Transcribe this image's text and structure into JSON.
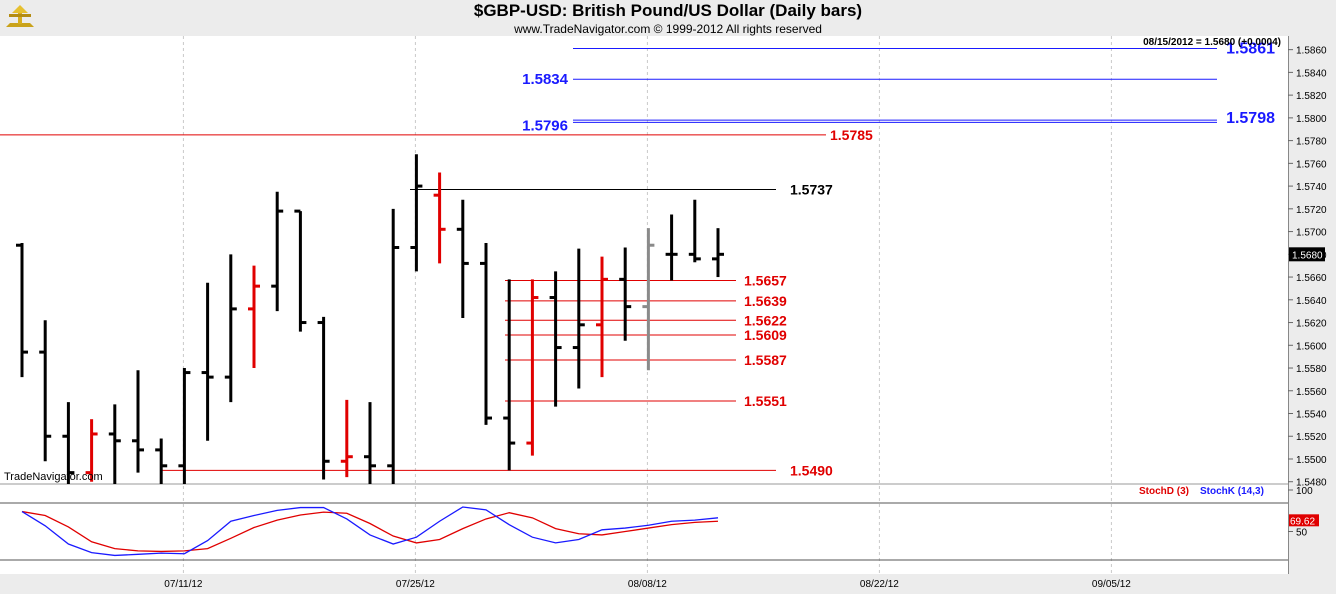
{
  "header": {
    "title": "$GBP-USD:  British Pound/US Dollar  (Daily bars)",
    "copyright": "www.TradeNavigator.com © 1999-2012 All rights reserved",
    "last_quote": "08/15/2012 = 1.5680 (+0.0004)"
  },
  "watermark": "TradeNavigator.com",
  "colors": {
    "up_bar": "#000000",
    "red_bar": "#e00000",
    "gray_bar": "#8a8a8a",
    "blue_level": "#1a1aff",
    "red_level": "#e00000",
    "stoch_d": "#e00000",
    "stoch_k": "#1a1aff"
  },
  "chart_data": [
    {
      "type": "ohlc",
      "title": "$GBP-USD:  British Pound/US Dollar  (Daily bars)",
      "ylim": [
        1.5478,
        1.5872
      ],
      "y_ticks": [
        "1.5480",
        "1.5500",
        "1.5520",
        "1.5540",
        "1.5560",
        "1.5580",
        "1.5600",
        "1.5620",
        "1.5640",
        "1.5660",
        "1.5680",
        "1.5700",
        "1.5720",
        "1.5740",
        "1.5760",
        "1.5780",
        "1.5800",
        "1.5820",
        "1.5840",
        "1.5860"
      ],
      "x_ticks": [
        "07/11/12",
        "07/25/12",
        "08/08/12",
        "08/22/12",
        "09/05/12"
      ],
      "current_price": "1.5680",
      "bars": [
        {
          "date": "07/02/12",
          "o": 1.5688,
          "h": 1.569,
          "l": 1.5572,
          "c": 1.5594,
          "color": "black"
        },
        {
          "date": "07/03/12",
          "o": 1.5594,
          "h": 1.5622,
          "l": 1.5498,
          "c": 1.552,
          "color": "black"
        },
        {
          "date": "07/04/12",
          "o": 1.552,
          "h": 1.555,
          "l": 1.5478,
          "c": 1.5488,
          "color": "black"
        },
        {
          "date": "07/05/12",
          "o": 1.5488,
          "h": 1.5535,
          "l": 1.548,
          "c": 1.5522,
          "color": "red"
        },
        {
          "date": "07/06/12",
          "o": 1.5522,
          "h": 1.5548,
          "l": 1.5478,
          "c": 1.5516,
          "color": "black"
        },
        {
          "date": "07/09/12",
          "o": 1.5516,
          "h": 1.5578,
          "l": 1.5488,
          "c": 1.5508,
          "color": "black"
        },
        {
          "date": "07/10/12",
          "o": 1.5508,
          "h": 1.5518,
          "l": 1.5478,
          "c": 1.5494,
          "color": "black"
        },
        {
          "date": "07/11/12",
          "o": 1.5494,
          "h": 1.558,
          "l": 1.5478,
          "c": 1.5576,
          "color": "black"
        },
        {
          "date": "07/12/12",
          "o": 1.5576,
          "h": 1.5655,
          "l": 1.5516,
          "c": 1.5572,
          "color": "black"
        },
        {
          "date": "07/13/12",
          "o": 1.5572,
          "h": 1.568,
          "l": 1.555,
          "c": 1.5632,
          "color": "black"
        },
        {
          "date": "07/16/12",
          "o": 1.5632,
          "h": 1.567,
          "l": 1.558,
          "c": 1.5652,
          "color": "red"
        },
        {
          "date": "07/17/12",
          "o": 1.5652,
          "h": 1.5735,
          "l": 1.563,
          "c": 1.5718,
          "color": "black"
        },
        {
          "date": "07/18/12",
          "o": 1.5718,
          "h": 1.5718,
          "l": 1.5612,
          "c": 1.562,
          "color": "black"
        },
        {
          "date": "07/19/12",
          "o": 1.562,
          "h": 1.5625,
          "l": 1.5482,
          "c": 1.5498,
          "color": "black"
        },
        {
          "date": "07/20/12",
          "o": 1.5498,
          "h": 1.5552,
          "l": 1.5484,
          "c": 1.5502,
          "color": "red"
        },
        {
          "date": "07/23/12",
          "o": 1.5502,
          "h": 1.555,
          "l": 1.5478,
          "c": 1.5494,
          "color": "black"
        },
        {
          "date": "07/24/12",
          "o": 1.5494,
          "h": 1.572,
          "l": 1.5478,
          "c": 1.5686,
          "color": "black"
        },
        {
          "date": "07/25/12",
          "o": 1.5686,
          "h": 1.5768,
          "l": 1.5665,
          "c": 1.574,
          "color": "black"
        },
        {
          "date": "07/26/12",
          "o": 1.5732,
          "h": 1.5752,
          "l": 1.5672,
          "c": 1.5702,
          "color": "red"
        },
        {
          "date": "07/27/12",
          "o": 1.5702,
          "h": 1.5728,
          "l": 1.5624,
          "c": 1.5672,
          "color": "black"
        },
        {
          "date": "07/30/12",
          "o": 1.5672,
          "h": 1.569,
          "l": 1.553,
          "c": 1.5536,
          "color": "black"
        },
        {
          "date": "07/31/12",
          "o": 1.5536,
          "h": 1.5658,
          "l": 1.549,
          "c": 1.5514,
          "color": "black"
        },
        {
          "date": "08/01/12",
          "o": 1.5514,
          "h": 1.5658,
          "l": 1.5503,
          "c": 1.5642,
          "color": "red"
        },
        {
          "date": "08/02/12",
          "o": 1.5642,
          "h": 1.5665,
          "l": 1.5546,
          "c": 1.5598,
          "color": "black"
        },
        {
          "date": "08/03/12",
          "o": 1.5598,
          "h": 1.5685,
          "l": 1.5562,
          "c": 1.5618,
          "color": "black"
        },
        {
          "date": "08/06/12",
          "o": 1.5618,
          "h": 1.5678,
          "l": 1.5572,
          "c": 1.5658,
          "color": "red"
        },
        {
          "date": "08/07/12",
          "o": 1.5658,
          "h": 1.5686,
          "l": 1.5604,
          "c": 1.5634,
          "color": "black"
        },
        {
          "date": "08/08/12",
          "o": 1.5634,
          "h": 1.5703,
          "l": 1.5578,
          "c": 1.5688,
          "color": "gray"
        },
        {
          "date": "08/09/12",
          "o": 1.568,
          "h": 1.5715,
          "l": 1.5657,
          "c": 1.568,
          "color": "black"
        },
        {
          "date": "08/10/12",
          "o": 1.568,
          "h": 1.5728,
          "l": 1.5673,
          "c": 1.5676,
          "color": "black"
        },
        {
          "date": "08/13/12",
          "o": 1.5676,
          "h": 1.5703,
          "l": 1.566,
          "c": 1.568,
          "color": "black"
        }
      ],
      "levels": [
        {
          "value": 1.5861,
          "label": "1.5861",
          "color": "blue",
          "label_pos": "right"
        },
        {
          "value": 1.5834,
          "label": "1.5834",
          "color": "blue",
          "label_pos": "left"
        },
        {
          "value": 1.5798,
          "label": "1.5798",
          "color": "blue",
          "label_pos": "right"
        },
        {
          "value": 1.5796,
          "label": "1.5796",
          "color": "blue",
          "label_pos": "left"
        },
        {
          "value": 1.5785,
          "label": "1.5785",
          "color": "red",
          "label_pos": "right"
        },
        {
          "value": 1.5737,
          "label": "1.5737",
          "color": "black",
          "label_pos": "right"
        },
        {
          "value": 1.5657,
          "label": "1.5657",
          "color": "red",
          "label_pos": "right"
        },
        {
          "value": 1.5639,
          "label": "1.5639",
          "color": "red",
          "label_pos": "right"
        },
        {
          "value": 1.5622,
          "label": "1.5622",
          "color": "red",
          "label_pos": "right"
        },
        {
          "value": 1.5609,
          "label": "1.5609",
          "color": "red",
          "label_pos": "right"
        },
        {
          "value": 1.5587,
          "label": "1.5587",
          "color": "red",
          "label_pos": "right"
        },
        {
          "value": 1.5551,
          "label": "1.5551",
          "color": "red",
          "label_pos": "right"
        },
        {
          "value": 1.549,
          "label": "1.5490",
          "color": "red",
          "label_pos": "right"
        }
      ]
    },
    {
      "type": "line",
      "ylim": [
        0,
        100
      ],
      "y_ticks": [
        "100",
        "50"
      ],
      "current_value": "69.62",
      "series": [
        {
          "name": "StochD (3)",
          "values": [
            85,
            78,
            58,
            32,
            20,
            16,
            15,
            16,
            20,
            38,
            57,
            70,
            79,
            84,
            82,
            64,
            42,
            30,
            36,
            55,
            72,
            83,
            74,
            55,
            46,
            44,
            50,
            56,
            62,
            66,
            68
          ]
        },
        {
          "name": "StochK (14,3)",
          "values": [
            85,
            60,
            28,
            13,
            8,
            10,
            12,
            11,
            34,
            68,
            78,
            87,
            92,
            92,
            72,
            44,
            28,
            40,
            68,
            93,
            88,
            62,
            40,
            30,
            36,
            53,
            56,
            61,
            68,
            70,
            74
          ]
        }
      ]
    }
  ]
}
